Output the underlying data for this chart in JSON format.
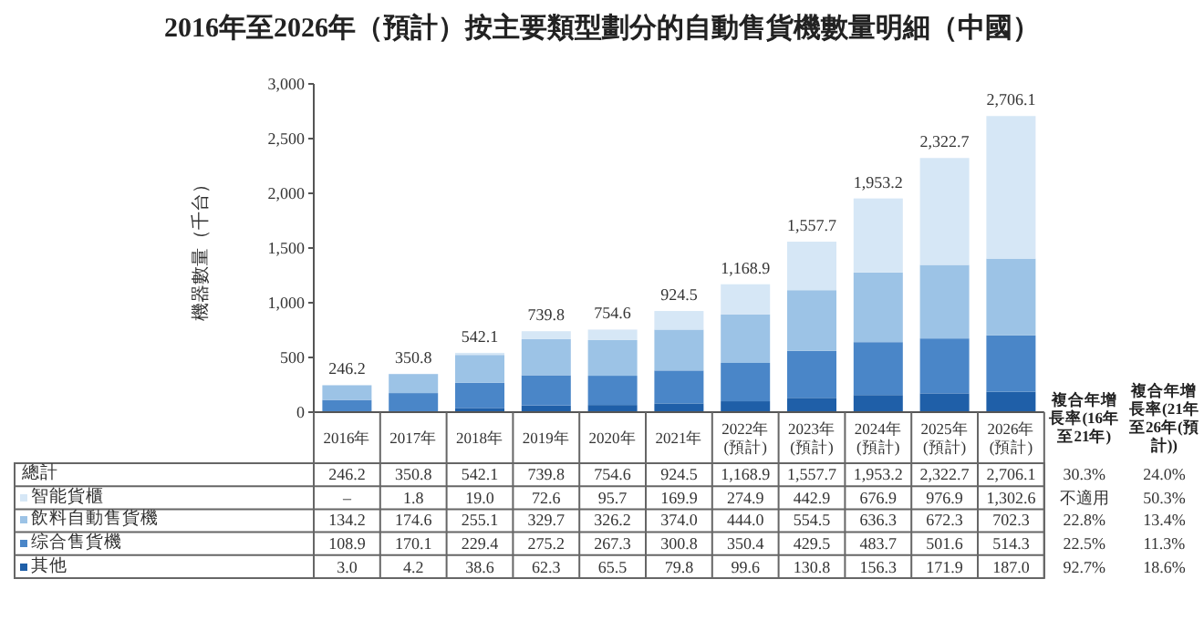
{
  "chart_data": {
    "type": "bar",
    "stacked": true,
    "title": "2016年至2026年（預計）按主要類型劃分的自動售貨機數量明細（中國）",
    "ylabel": "機器數量（千台）",
    "ylim": [
      0,
      3000
    ],
    "yticks": [
      {
        "value": 0,
        "label": "0"
      },
      {
        "value": 500,
        "label": "500"
      },
      {
        "value": 1000,
        "label": "1,000"
      },
      {
        "value": 1500,
        "label": "1,500"
      },
      {
        "value": 2000,
        "label": "2,000"
      },
      {
        "value": 2500,
        "label": "2,500"
      },
      {
        "value": 3000,
        "label": "3,000"
      }
    ],
    "categories": [
      "2016年",
      "2017年",
      "2018年",
      "2019年",
      "2020年",
      "2021年",
      "2022年 (預計)",
      "2023年 (預計)",
      "2024年 (預計)",
      "2025年 (預計)",
      "2026年 (預計)"
    ],
    "series": [
      {
        "name": "其他",
        "color": "#1f5fa8",
        "values": [
          3.0,
          4.2,
          38.6,
          62.3,
          65.5,
          79.8,
          99.6,
          130.8,
          156.3,
          171.9,
          187.0
        ],
        "value_labels": [
          "3.0",
          "4.2",
          "38.6",
          "62.3",
          "65.5",
          "79.8",
          "99.6",
          "130.8",
          "156.3",
          "171.9",
          "187.0"
        ]
      },
      {
        "name": "综合售貨機",
        "color": "#4a86c8",
        "values": [
          108.9,
          170.1,
          229.4,
          275.2,
          267.3,
          300.8,
          350.4,
          429.5,
          483.7,
          501.6,
          514.3
        ],
        "value_labels": [
          "108.9",
          "170.1",
          "229.4",
          "275.2",
          "267.3",
          "300.8",
          "350.4",
          "429.5",
          "483.7",
          "501.6",
          "514.3"
        ]
      },
      {
        "name": "飲料自動售貨機",
        "color": "#9cc3e6",
        "values": [
          134.2,
          174.6,
          255.1,
          329.7,
          326.2,
          374.0,
          444.0,
          554.5,
          636.3,
          672.3,
          702.3
        ],
        "value_labels": [
          "134.2",
          "174.6",
          "255.1",
          "329.7",
          "326.2",
          "374.0",
          "444.0",
          "554.5",
          "636.3",
          "672.3",
          "702.3"
        ]
      },
      {
        "name": "智能貨櫃",
        "color": "#d6e7f6",
        "values": [
          null,
          1.8,
          19.0,
          72.6,
          95.7,
          169.9,
          274.9,
          442.9,
          676.9,
          976.9,
          1302.6
        ],
        "value_labels": [
          "–",
          "1.8",
          "19.0",
          "72.6",
          "95.7",
          "169.9",
          "274.9",
          "442.9",
          "676.9",
          "976.9",
          "1,302.6"
        ]
      }
    ],
    "totals": [
      "246.2",
      "350.8",
      "542.1",
      "739.8",
      "754.6",
      "924.5",
      "1,168.9",
      "1,557.7",
      "1,953.2",
      "2,322.7",
      "2,706.1"
    ],
    "legend": "bottom",
    "annotations": [
      "總計",
      "複合年增長率(16年至21年)",
      "複合年增長率(21年至26年(預計))",
      "30.3%",
      "24.0%",
      "不適用",
      "50.3%",
      "22.8%",
      "13.4%",
      "22.5%",
      "11.3%",
      "92.7%",
      "18.6%"
    ]
  }
}
